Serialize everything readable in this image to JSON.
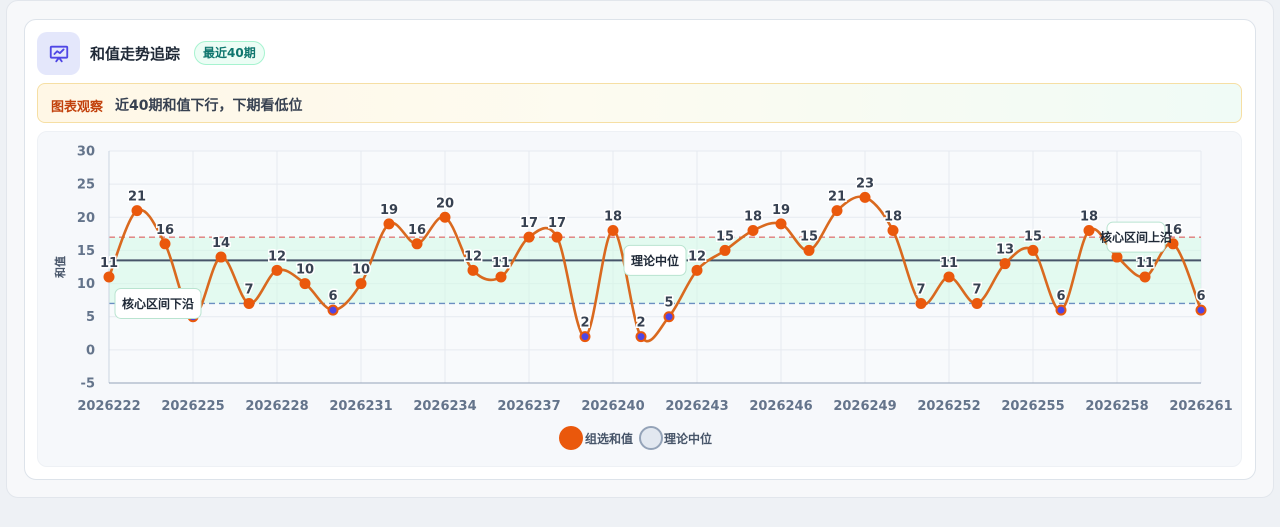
{
  "header": {
    "title": "和值走势追踪",
    "badge": "最近40期",
    "icon": "chart-presentation-icon"
  },
  "observation": {
    "label": "图表观察",
    "text": "近40期和值下行，下期看低位"
  },
  "colors": {
    "line": "#d9691f",
    "point_fill": "#ea580c",
    "point_low_fill": "#4f46e5",
    "median_line": "#475569",
    "upper_line": "#e07a7a",
    "lower_line": "#6b8fc2",
    "band": "#d1fae5",
    "icon": "#4f46e5"
  },
  "chart_data": {
    "type": "line",
    "x": [
      "2026222",
      "2026223",
      "2026224",
      "2026225",
      "2026226",
      "2026227",
      "2026228",
      "2026229",
      "2026230",
      "2026231",
      "2026232",
      "2026233",
      "2026234",
      "2026235",
      "2026236",
      "2026237",
      "2026238",
      "2026239",
      "2026240",
      "2026241",
      "2026242",
      "2026243",
      "2026244",
      "2026245",
      "2026246",
      "2026247",
      "2026248",
      "2026249",
      "2026250",
      "2026251",
      "2026252",
      "2026253",
      "2026254",
      "2026255",
      "2026256",
      "2026257",
      "2026258",
      "2026259",
      "2026260",
      "2026261"
    ],
    "x_tick_labels": [
      "2026222",
      "2026225",
      "2026228",
      "2026231",
      "2026234",
      "2026237",
      "2026240",
      "2026243",
      "2026246",
      "2026249",
      "2026252",
      "2026255",
      "2026258",
      "2026261"
    ],
    "series": [
      {
        "name": "组选和值",
        "values": [
          11,
          21,
          16,
          5,
          14,
          7,
          12,
          10,
          6,
          10,
          19,
          16,
          20,
          12,
          11,
          17,
          17,
          2,
          18,
          2,
          5,
          12,
          15,
          18,
          19,
          15,
          21,
          23,
          18,
          7,
          11,
          7,
          13,
          15,
          6,
          18,
          14,
          11,
          16,
          6
        ]
      }
    ],
    "reference_lines": [
      {
        "name": "理论中位",
        "value": 13.5
      },
      {
        "name": "核心区间上沿",
        "value": 17
      },
      {
        "name": "核心区间下沿",
        "value": 7
      }
    ],
    "ylabel": "和值",
    "xlabel": "",
    "ylim": [
      -5,
      30
    ],
    "yticks": [
      30,
      25,
      20,
      15,
      10,
      5,
      0,
      -5
    ],
    "grid": true,
    "legend": [
      {
        "label": "组选和值"
      },
      {
        "label": "理论中位"
      }
    ],
    "legend_position": "bottom"
  }
}
